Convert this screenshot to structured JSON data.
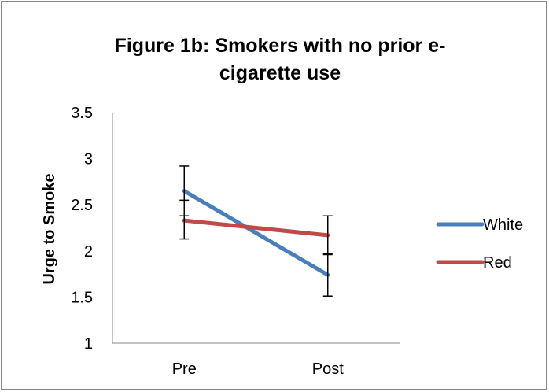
{
  "chart_data": {
    "type": "line",
    "title_lines": [
      "Figure 1b: Smokers with no prior e-",
      "cigarette use"
    ],
    "title": "Figure 1b: Smokers with no prior e-cigarette use",
    "xlabel": "",
    "ylabel": "Urge to Smoke",
    "categories": [
      "Pre",
      "Post"
    ],
    "ylim": [
      1,
      3.5
    ],
    "yticks": [
      1,
      1.5,
      2,
      2.5,
      3,
      3.5
    ],
    "ytick_labels": [
      "1",
      "1.5",
      "2",
      "2.5",
      "3",
      "3.5"
    ],
    "grid": false,
    "legend_position": "right",
    "series": [
      {
        "name": "White",
        "values": [
          2.65,
          1.74
        ],
        "error_low": [
          2.38,
          1.51
        ],
        "error_high": [
          2.92,
          1.97
        ],
        "color": "#4a7ebb"
      },
      {
        "name": "Red",
        "values": [
          2.33,
          2.17
        ],
        "error_low": [
          2.13,
          1.96
        ],
        "error_high": [
          2.55,
          2.38
        ],
        "color": "#be4b48"
      }
    ]
  }
}
